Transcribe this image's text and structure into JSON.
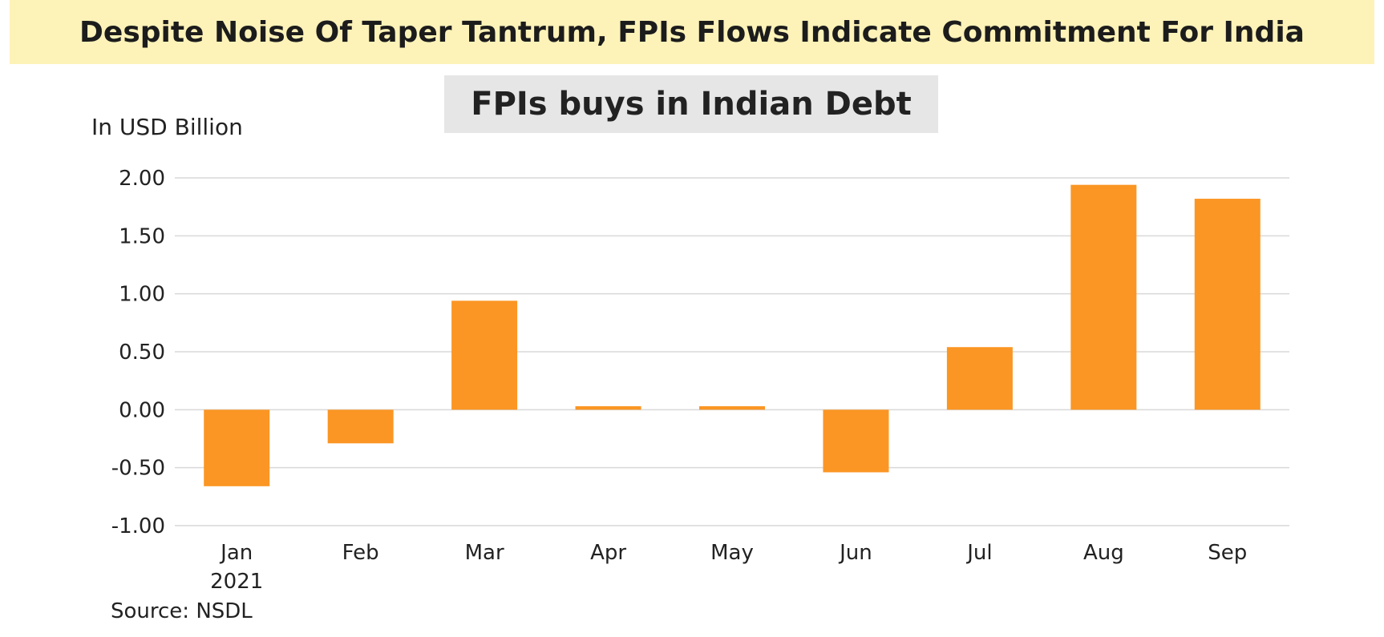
{
  "header": {
    "banner_title": "Despite Noise Of Taper Tantrum, FPIs Flows Indicate Commitment For India"
  },
  "footer": {
    "source": "Source: NSDL"
  },
  "chart_data": {
    "type": "bar",
    "title": "FPIs buys in Indian Debt",
    "ylabel": "In USD Billion",
    "xlabel": "",
    "categories": [
      "Jan",
      "Feb",
      "Mar",
      "Apr",
      "May",
      "Jun",
      "Jul",
      "Aug",
      "Sep"
    ],
    "category_sublabels": [
      "2021",
      "",
      "",
      "",
      "",
      "",
      "",
      "",
      ""
    ],
    "values": [
      -0.66,
      -0.29,
      0.94,
      0.03,
      0.03,
      -0.54,
      0.54,
      1.94,
      1.82
    ],
    "ylim": [
      -1.0,
      2.0
    ],
    "yticks": [
      "-1.00",
      "-0.50",
      "0.00",
      "0.50",
      "1.00",
      "1.50",
      "2.00"
    ],
    "ytick_values": [
      -1.0,
      -0.5,
      0.0,
      0.5,
      1.0,
      1.5,
      2.0
    ],
    "grid": true,
    "legend": "none",
    "bar_color": "#fb9624",
    "grid_color": "#d9d9d9"
  }
}
